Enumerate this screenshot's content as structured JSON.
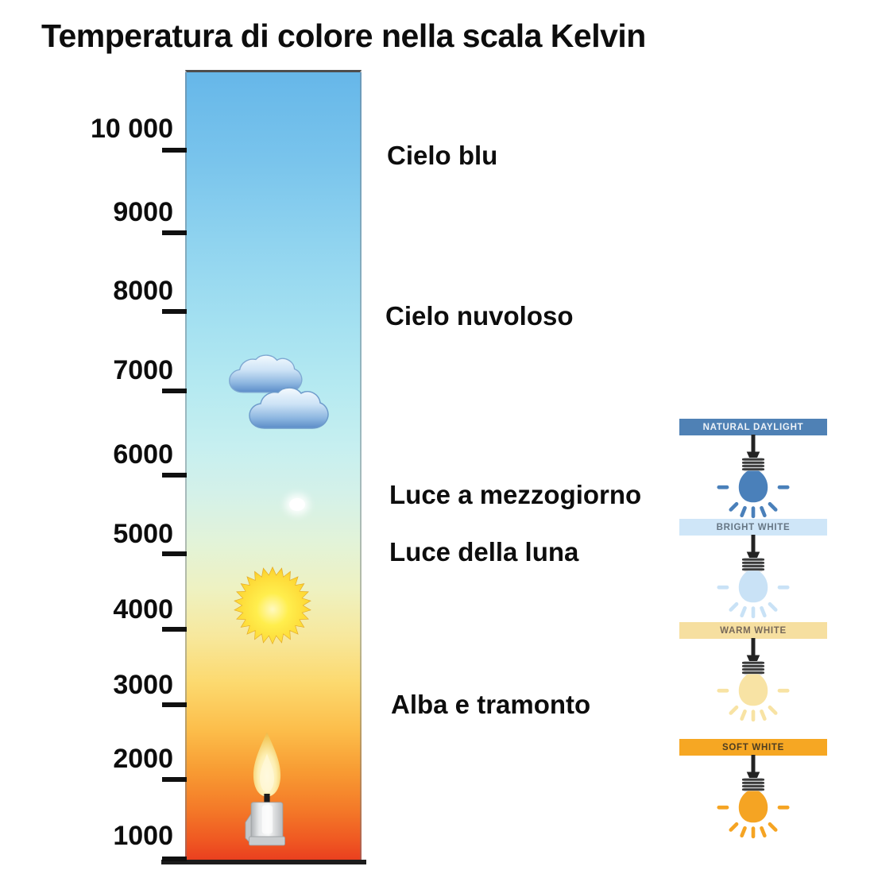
{
  "title": "Temperatura di colore nella scala Kelvin",
  "scale": {
    "unit": "Kelvin",
    "ticks": [
      "10 000",
      "9000",
      "8000",
      "7000",
      "6000",
      "5000",
      "4000",
      "3000",
      "2000",
      "1000"
    ],
    "gradient_stops": [
      {
        "pos": 0.0,
        "color": "#66b7e9"
      },
      {
        "pos": 0.112,
        "color": "#79c4ec"
      },
      {
        "pos": 0.212,
        "color": "#8fd3ef"
      },
      {
        "pos": 0.312,
        "color": "#a3e0f1"
      },
      {
        "pos": 0.392,
        "color": "#b4e9f1"
      },
      {
        "pos": 0.472,
        "color": "#c6eff0"
      },
      {
        "pos": 0.532,
        "color": "#d4f1e9"
      },
      {
        "pos": 0.592,
        "color": "#e2f3d9"
      },
      {
        "pos": 0.652,
        "color": "#eef2c2"
      },
      {
        "pos": 0.712,
        "color": "#f7e89d"
      },
      {
        "pos": 0.772,
        "color": "#fcd96e"
      },
      {
        "pos": 0.832,
        "color": "#fcbd4a"
      },
      {
        "pos": 0.882,
        "color": "#f89c33"
      },
      {
        "pos": 0.932,
        "color": "#f47928"
      },
      {
        "pos": 0.972,
        "color": "#ef5722"
      },
      {
        "pos": 1.0,
        "color": "#e93a1e"
      }
    ]
  },
  "annotations": [
    {
      "label": "Cielo blu",
      "kelvin_approx": 9700
    },
    {
      "label": "Cielo nuvoloso",
      "kelvin_approx": 7700
    },
    {
      "label": "Luce a mezzogiorno",
      "kelvin_approx": 5500
    },
    {
      "label": "Luce della luna",
      "kelvin_approx": 4700
    },
    {
      "label": "Alba e tramonto",
      "kelvin_approx": 3100
    }
  ],
  "icons": {
    "cloud": "cloud-icon",
    "moon": "moon-icon",
    "sun": "sun-icon",
    "candle": "candle-icon",
    "bulb": "lightbulb-icon"
  },
  "bulb_panel": {
    "sections": [
      {
        "label": "NATURAL DAYLIGHT",
        "header_bg": "#4f81b5",
        "header_text": "#eef3f8",
        "bulb_color": "#4a80ba"
      },
      {
        "label": "BRIGHT WHITE",
        "header_bg": "#cfe6f8",
        "header_text": "#667684",
        "bulb_color": "#c9e2f6"
      },
      {
        "label": "WARM WHITE",
        "header_bg": "#f6dfa0",
        "header_text": "#77695a",
        "bulb_color": "#f8e3a4"
      },
      {
        "label": "SOFT WHITE",
        "header_bg": "#f6a723",
        "header_text": "#4d3d22",
        "bulb_color": "#f5a423"
      }
    ]
  },
  "palette": {
    "bar_border": "#4e4e4e",
    "axis_color": "#101010",
    "cloud_blue": "#5b8cc8",
    "sun_yellow": "#fdd835",
    "flame_gold": "#f3c95c",
    "candle_gray": "#c9ccce",
    "moon_white": "#ffffff"
  },
  "chart_data": {
    "type": "scale",
    "title": "Temperatura di colore nella scala Kelvin",
    "axis_unit": "K",
    "axis_ticks": [
      10000,
      9000,
      8000,
      7000,
      6000,
      5000,
      4000,
      3000,
      2000,
      1000
    ],
    "annotations": [
      {
        "label": "Cielo blu",
        "kelvin_approx": 9700
      },
      {
        "label": "Cielo nuvoloso",
        "kelvin_approx": 7700
      },
      {
        "label": "Luce a mezzogiorno",
        "kelvin_approx": 5500
      },
      {
        "label": "Luce della luna",
        "kelvin_approx": 4700
      },
      {
        "label": "Alba e tramonto",
        "kelvin_approx": 3100
      }
    ]
  }
}
